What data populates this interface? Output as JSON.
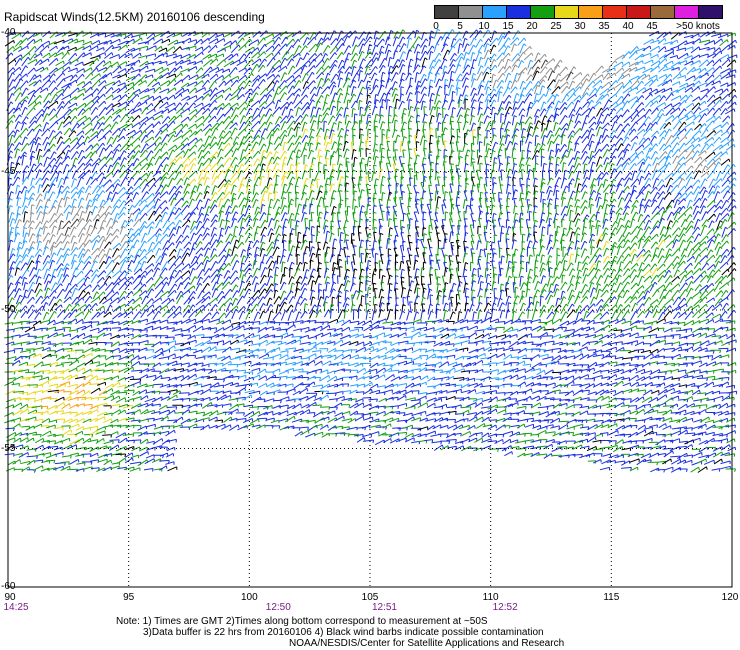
{
  "title": "Rapidscat Winds(12.5KM) 20160106 descending",
  "legend": {
    "labels": [
      "0",
      "5",
      "10",
      "15",
      "20",
      "25",
      "30",
      "35",
      "40",
      "45",
      ">50 knots"
    ],
    "colors": [
      "#404040",
      "#909090",
      "#2aa0ff",
      "#1a2fe0",
      "#12a012",
      "#e8d81a",
      "#f8a018",
      "#e83018",
      "#c81818",
      "#9a6a3a",
      "#e020e0",
      "#30106a"
    ]
  },
  "map": {
    "lat_labels": [
      "-40",
      "-45",
      "-50",
      "-55",
      "-60"
    ],
    "lat_values": [
      -40,
      -45,
      -50,
      -55,
      -60
    ],
    "lon_labels": [
      "90",
      "95",
      "100",
      "105",
      "110",
      "115",
      "120"
    ],
    "lon_values": [
      90,
      95,
      100,
      105,
      110,
      115,
      120
    ],
    "time_labels": [
      {
        "text": "14:25",
        "lon": 90.2
      },
      {
        "text": "12:50",
        "lon": 101.2
      },
      {
        "text": "12:51",
        "lon": 105.6
      },
      {
        "text": "12:52",
        "lon": 110.6
      }
    ]
  },
  "notes": {
    "line1": "Note: 1) Times are GMT 2)Times along bottom correspond to measurement at ~50S",
    "line2": "3)Data buffer is 22 hrs from 20160106 4) Black wind barbs indicate possible contamination",
    "line3": "NOAA/NESDIS/Center for Satellite Applications and Research"
  }
}
